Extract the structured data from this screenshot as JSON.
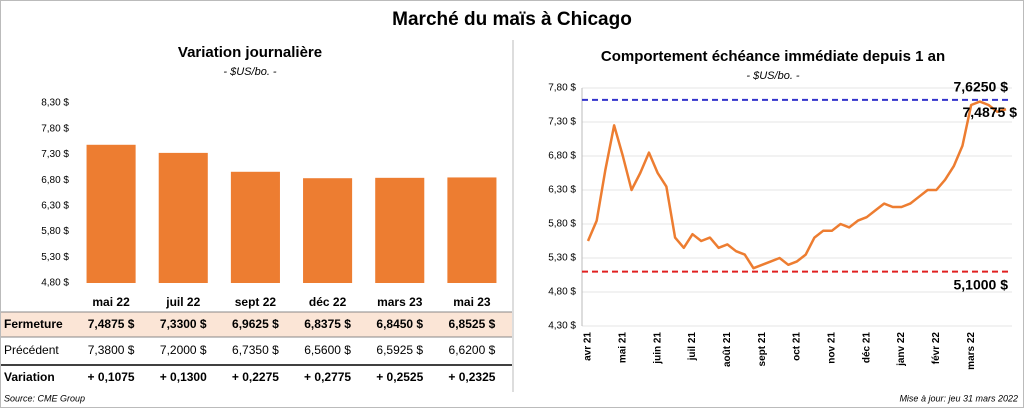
{
  "title": "Marché du maïs à Chicago",
  "source": "Source: CME Group",
  "updated": "Mise à jour: jeu 31 mars 2022",
  "chart_data": [
    {
      "type": "bar",
      "title": "Variation journalière",
      "subtitle": "- $US/bo. -",
      "categories": [
        "mai 22",
        "juil 22",
        "sept 22",
        "déc 22",
        "mars 23",
        "mai 23"
      ],
      "row_label": "Fermeture",
      "values": [
        7.4875,
        7.33,
        6.9625,
        6.8375,
        6.845,
        6.8525
      ],
      "value_labels": [
        "7,4875  $",
        "7,3300  $",
        "6,9625  $",
        "6,8375  $",
        "6,8450  $",
        "6,8525  $"
      ],
      "color": "#ed7d31",
      "previous": {
        "label": "Précédent",
        "labels": [
          "7,3800  $",
          "7,2000  $",
          "6,7350  $",
          "6,5600  $",
          "6,5925  $",
          "6,6200  $"
        ]
      },
      "change": {
        "label": "Variation",
        "labels": [
          "+ 0,1075",
          "+ 0,1300",
          "+ 0,2275",
          "+ 0,2775",
          "+ 0,2525",
          "+ 0,2325"
        ],
        "color": "#2e9e2e"
      },
      "ylim": [
        4.8,
        8.3
      ],
      "yticks": [
        {
          "value": 4.8,
          "label": "4,80 $"
        },
        {
          "value": 5.3,
          "label": "5,30 $"
        },
        {
          "value": 5.8,
          "label": "5,80 $"
        },
        {
          "value": 6.3,
          "label": "6,30 $"
        },
        {
          "value": 6.8,
          "label": "6,80 $"
        },
        {
          "value": 7.3,
          "label": "7,30 $"
        },
        {
          "value": 7.8,
          "label": "7,80 $"
        },
        {
          "value": 8.3,
          "label": "8,30 $"
        }
      ],
      "grid": false
    },
    {
      "type": "line",
      "title": "Comportement  échéance immédiate depuis 1 an",
      "subtitle": "- $US/bo. -",
      "categories": [
        "avr 21",
        null,
        null,
        null,
        "mai 21",
        null,
        null,
        null,
        "juin 21",
        null,
        null,
        null,
        "juil 21",
        null,
        null,
        null,
        "août 21",
        null,
        null,
        null,
        "sept 21",
        null,
        null,
        null,
        "oct 21",
        null,
        null,
        null,
        "nov 21",
        null,
        null,
        null,
        "déc 21",
        null,
        null,
        null,
        "janv 22",
        null,
        null,
        null,
        "févr 22",
        null,
        null,
        null,
        "mars 22",
        null,
        null,
        null,
        null
      ],
      "values": [
        5.55,
        5.85,
        6.6,
        7.25,
        6.8,
        6.3,
        6.55,
        6.85,
        6.55,
        6.35,
        5.6,
        5.45,
        5.65,
        5.55,
        5.6,
        5.45,
        5.5,
        5.4,
        5.35,
        5.15,
        5.2,
        5.25,
        5.3,
        5.2,
        5.25,
        5.35,
        5.6,
        5.7,
        5.7,
        5.8,
        5.75,
        5.85,
        5.9,
        6.0,
        6.1,
        6.05,
        6.05,
        6.1,
        6.2,
        6.3,
        6.3,
        6.45,
        6.65,
        6.95,
        7.55,
        7.6,
        7.55,
        7.45,
        7.4875
      ],
      "color": "#ed7d31",
      "end_label": "7,4875 $",
      "ref_lines": [
        {
          "value": 7.625,
          "label": "7,6250 $",
          "color": "#3333cc"
        },
        {
          "value": 5.1,
          "label": "5,1000 $",
          "color": "#e02020"
        }
      ],
      "ylim": [
        4.3,
        7.8
      ],
      "yticks": [
        {
          "value": 4.3,
          "label": "4,30 $"
        },
        {
          "value": 4.8,
          "label": "4,80 $"
        },
        {
          "value": 5.3,
          "label": "5,30 $"
        },
        {
          "value": 5.8,
          "label": "5,80 $"
        },
        {
          "value": 6.3,
          "label": "6,30 $"
        },
        {
          "value": 6.8,
          "label": "6,80 $"
        },
        {
          "value": 7.3,
          "label": "7,30 $"
        },
        {
          "value": 7.8,
          "label": "7,80 $"
        }
      ],
      "grid": true
    }
  ]
}
